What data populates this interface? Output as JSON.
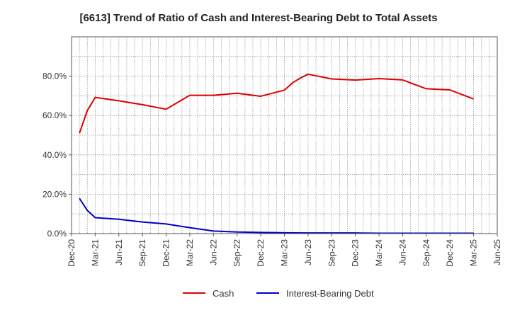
{
  "chart_data": {
    "type": "line",
    "title": "[6613]  Trend of Ratio of Cash and Interest-Bearing Debt to Total Assets",
    "xlabel": "",
    "ylabel": "",
    "x_ticks": [
      "Dec-20",
      "Mar-21",
      "Jun-21",
      "Sep-21",
      "Dec-21",
      "Mar-22",
      "Jun-22",
      "Sep-22",
      "Dec-22",
      "Mar-23",
      "Jun-23",
      "Sep-23",
      "Dec-23",
      "Mar-24",
      "Jun-24",
      "Sep-24",
      "Dec-24",
      "Mar-25",
      "Jun-25"
    ],
    "y_ticks": [
      "0.0%",
      "20.0%",
      "40.0%",
      "60.0%",
      "80.0%"
    ],
    "ylim": [
      0,
      100
    ],
    "grid": true,
    "legend": "bottom",
    "series": [
      {
        "name": "Cash",
        "color": "#e00000",
        "points": [
          {
            "x": "2021-01",
            "y": 51.0
          },
          {
            "x": "2021-02",
            "y": 62.5
          },
          {
            "x": "2021-03",
            "y": 69.2
          },
          {
            "x": "2021-06",
            "y": 67.5
          },
          {
            "x": "2021-09",
            "y": 65.5
          },
          {
            "x": "2021-12",
            "y": 63.2
          },
          {
            "x": "2022-03",
            "y": 70.3
          },
          {
            "x": "2022-06",
            "y": 70.3
          },
          {
            "x": "2022-09",
            "y": 71.3
          },
          {
            "x": "2022-12",
            "y": 69.8
          },
          {
            "x": "2023-03",
            "y": 72.9
          },
          {
            "x": "2023-04",
            "y": 76.5
          },
          {
            "x": "2023-05",
            "y": 79.0
          },
          {
            "x": "2023-06",
            "y": 81.0
          },
          {
            "x": "2023-09",
            "y": 78.6
          },
          {
            "x": "2023-12",
            "y": 78.0
          },
          {
            "x": "2024-03",
            "y": 78.8
          },
          {
            "x": "2024-06",
            "y": 78.1
          },
          {
            "x": "2024-09",
            "y": 73.6
          },
          {
            "x": "2024-12",
            "y": 73.0
          },
          {
            "x": "2025-03",
            "y": 68.4
          }
        ]
      },
      {
        "name": "Interest-Bearing Debt",
        "color": "#0000cc",
        "points": [
          {
            "x": "2021-01",
            "y": 17.9
          },
          {
            "x": "2021-02",
            "y": 11.8
          },
          {
            "x": "2021-03",
            "y": 8.1
          },
          {
            "x": "2021-06",
            "y": 7.3
          },
          {
            "x": "2021-09",
            "y": 5.9
          },
          {
            "x": "2021-12",
            "y": 4.9
          },
          {
            "x": "2022-03",
            "y": 3.0
          },
          {
            "x": "2022-06",
            "y": 1.3
          },
          {
            "x": "2022-09",
            "y": 0.8
          },
          {
            "x": "2022-12",
            "y": 0.6
          },
          {
            "x": "2023-03",
            "y": 0.4
          },
          {
            "x": "2023-06",
            "y": 0.3
          },
          {
            "x": "2023-09",
            "y": 0.3
          },
          {
            "x": "2023-12",
            "y": 0.3
          },
          {
            "x": "2024-03",
            "y": 0.2
          },
          {
            "x": "2024-06",
            "y": 0.2
          },
          {
            "x": "2024-09",
            "y": 0.2
          },
          {
            "x": "2024-12",
            "y": 0.2
          },
          {
            "x": "2025-03",
            "y": 0.2
          }
        ]
      }
    ]
  }
}
